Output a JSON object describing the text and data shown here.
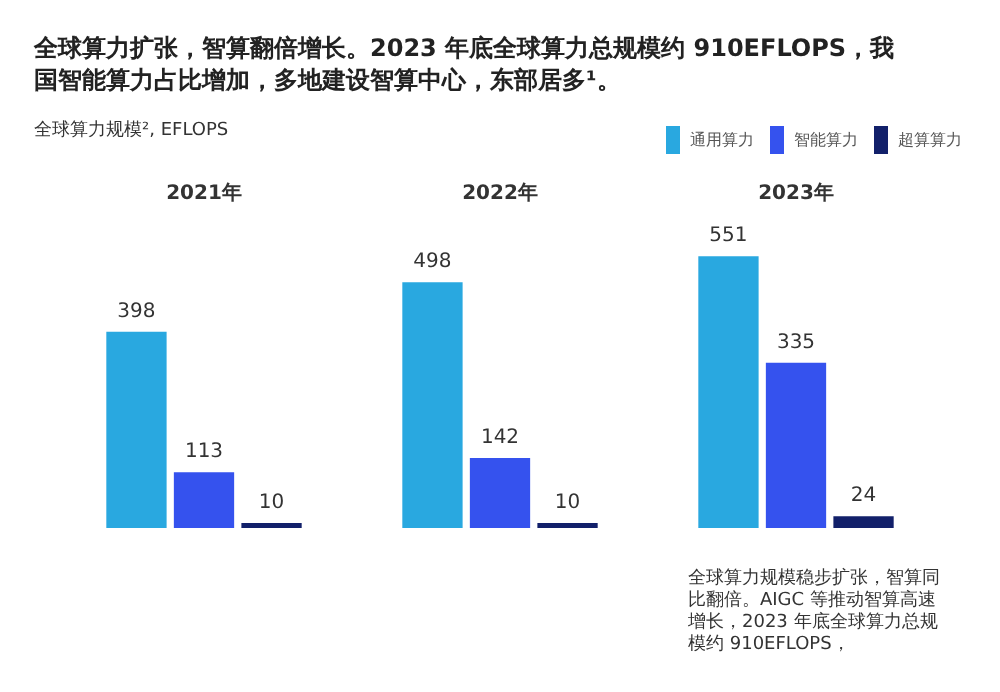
{
  "chart_data": {
    "type": "bar",
    "title": "全球算力扩张，智算翻倍增长。2023 年底全球算力总规模约 910EFLOPS，我国智能算力占比增加，多地建设智算中心，东部居多¹。",
    "subtitle": "全球算力规模², EFLOPS",
    "categories": [
      "2021年",
      "2022年",
      "2023年"
    ],
    "series": [
      {
        "name": "通用算力",
        "color": "#29a8e0",
        "values": [
          398,
          498,
          551
        ]
      },
      {
        "name": "智能算力",
        "color": "#3552ee",
        "values": [
          113,
          142,
          335
        ]
      },
      {
        "name": "超算算力",
        "color": "#12206a",
        "values": [
          10,
          10,
          24
        ]
      }
    ],
    "data_labels": true,
    "legend": "top right",
    "annotations": [
      "全球算力规模稳步扩张，智算同比翻倍。AIGC 等推动智算高速增长，2023 年底全球算力总规模约 910EFLOPS，"
    ]
  }
}
